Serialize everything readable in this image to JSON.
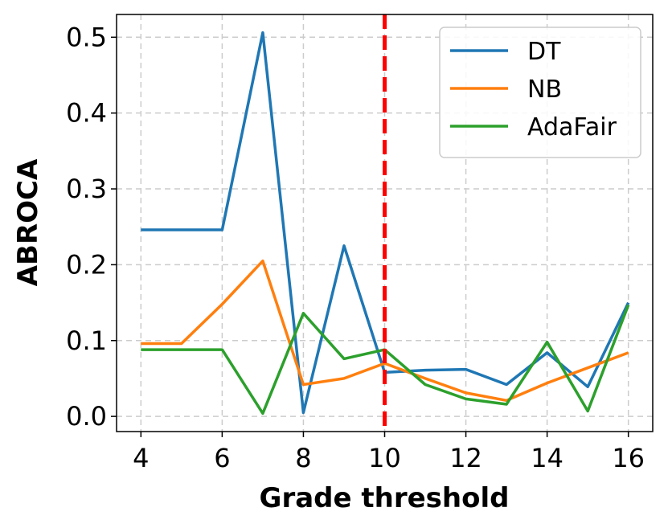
{
  "chart_data": {
    "type": "line",
    "xlabel": "Grade threshold",
    "ylabel": "ABROCA",
    "xlim": [
      3.4,
      16.6
    ],
    "ylim": [
      -0.02,
      0.53
    ],
    "x_ticks": [
      4,
      6,
      8,
      10,
      12,
      14,
      16
    ],
    "x_tick_labels": [
      "4",
      "6",
      "8",
      "10",
      "12",
      "14",
      "16"
    ],
    "y_ticks": [
      0.0,
      0.1,
      0.2,
      0.3,
      0.4,
      0.5
    ],
    "y_tick_labels": [
      "0.0",
      "0.1",
      "0.2",
      "0.3",
      "0.4",
      "0.5"
    ],
    "grid": true,
    "legend_position": "top-right",
    "x": [
      4,
      5,
      6,
      7,
      8,
      9,
      10,
      11,
      12,
      13,
      14,
      15,
      16
    ],
    "series": [
      {
        "name": "DT",
        "color": "#1f77b4",
        "values": [
          0.246,
          0.246,
          0.246,
          0.506,
          0.005,
          0.225,
          0.058,
          0.061,
          0.062,
          0.042,
          0.084,
          0.039,
          0.15
        ]
      },
      {
        "name": "NB",
        "color": "#ff7f0e",
        "values": [
          0.096,
          0.096,
          0.148,
          0.205,
          0.042,
          0.05,
          0.07,
          0.05,
          0.031,
          0.021,
          0.044,
          0.064,
          0.084
        ]
      },
      {
        "name": "AdaFair",
        "color": "#2ca02c",
        "values": [
          0.088,
          0.088,
          0.088,
          0.004,
          0.136,
          0.076,
          0.088,
          0.042,
          0.023,
          0.016,
          0.098,
          0.007,
          0.147
        ]
      }
    ],
    "annotations": [
      {
        "type": "vertical-line",
        "x": 10,
        "color": "#ff0000",
        "style": "dashed"
      }
    ]
  }
}
